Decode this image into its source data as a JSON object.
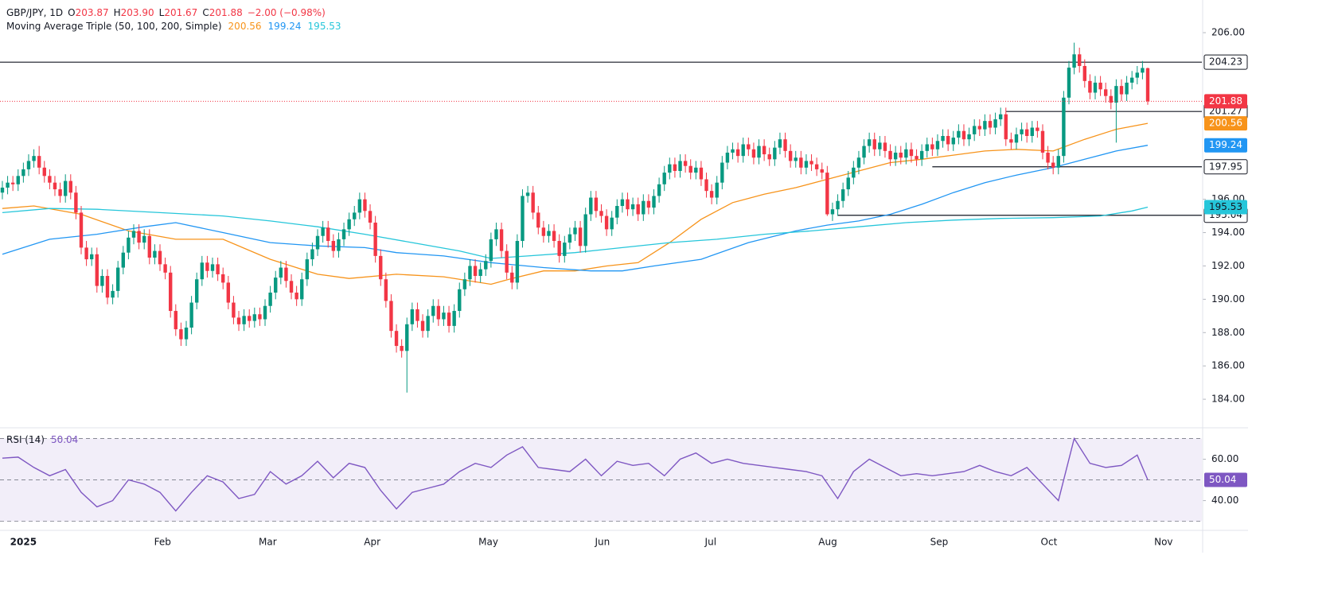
{
  "header": {
    "symbol": "GBP/JPY, 1D",
    "ohlc": [
      {
        "letter": "O",
        "label": "203.87"
      },
      {
        "letter": "H",
        "label": "203.90"
      },
      {
        "letter": "L",
        "label": "201.67"
      },
      {
        "letter": "C",
        "label": "201.88"
      }
    ],
    "change": "−2.00 (−0.98%)",
    "value_color": "#f23645",
    "ma_title": "Moving Average Triple (50, 100, 200, Simple)"
  },
  "chart_data": {
    "type": "candlestick",
    "up_color": "#089981",
    "down_color": "#f23645",
    "open": [
      196.4,
      196.7,
      197.0,
      196.9,
      197.4,
      197.8,
      198.3,
      198.6,
      197.9,
      197.4,
      197.0,
      196.6,
      196.2,
      197.1,
      196.4,
      195.2,
      193.1,
      192.4,
      192.7,
      190.8,
      191.4,
      190.1,
      190.5,
      191.9,
      192.8,
      193.7,
      194.1,
      193.4,
      193.8,
      192.5,
      192.9,
      192.1,
      191.6,
      189.3,
      188.2,
      187.6,
      188.3,
      189.8,
      191.2,
      192.2,
      191.7,
      192.1,
      191.5,
      191.0,
      189.8,
      188.9,
      188.5,
      189.0,
      188.7,
      189.1,
      188.8,
      189.6,
      190.4,
      191.3,
      191.9,
      191.1,
      190.4,
      190.0,
      191.2,
      192.4,
      193.0,
      193.8,
      194.3,
      193.5,
      192.9,
      193.6,
      194.2,
      194.8,
      195.2,
      196.0,
      195.3,
      194.6,
      192.6,
      191.2,
      189.9,
      188.1,
      187.2,
      186.9,
      188.5,
      189.4,
      188.7,
      188.1,
      189.0,
      189.6,
      188.8,
      189.2,
      188.4,
      189.3,
      190.6,
      191.2,
      192.0,
      191.4,
      191.8,
      192.3,
      193.6,
      194.2,
      192.9,
      191.6,
      191.0,
      193.5,
      196.2,
      196.4,
      195.2,
      194.3,
      193.8,
      194.1,
      193.5,
      192.6,
      193.4,
      193.9,
      194.3,
      193.2,
      195.1,
      196.1,
      195.3,
      195.0,
      194.2,
      194.9,
      195.6,
      196.0,
      195.4,
      195.7,
      195.1,
      195.9,
      195.5,
      196.2,
      196.9,
      197.6,
      198.1,
      197.7,
      198.3,
      198.0,
      197.6,
      197.9,
      197.2,
      196.5,
      196.1,
      197.0,
      198.2,
      198.8,
      199.0,
      198.6,
      199.3,
      199.0,
      198.5,
      199.2,
      198.7,
      198.4,
      199.1,
      199.6,
      198.9,
      198.3,
      198.5,
      197.9,
      198.3,
      198.1,
      197.8,
      197.6,
      195.1,
      195.4,
      195.9,
      196.6,
      197.3,
      197.9,
      198.5,
      199.2,
      199.6,
      199.0,
      199.4,
      198.9,
      198.4,
      198.8,
      198.5,
      199.0,
      198.6,
      198.4,
      198.9,
      199.3,
      199.0,
      199.5,
      199.8,
      199.3,
      199.7,
      200.1,
      199.6,
      199.9,
      200.4,
      200.2,
      200.7,
      200.3,
      200.8,
      201.1,
      199.6,
      199.4,
      199.9,
      200.2,
      199.8,
      200.3,
      200.1,
      198.8,
      198.2,
      197.9,
      198.6,
      202.1,
      203.9,
      204.7,
      204.0,
      203.1,
      202.4,
      203.0,
      202.6,
      202.2,
      201.8,
      202.8,
      202.3,
      203.0,
      203.3,
      203.6,
      203.87
    ],
    "high": [
      197.1,
      197.4,
      197.4,
      197.8,
      198.2,
      198.7,
      199.0,
      199.2,
      198.3,
      197.8,
      197.4,
      197.0,
      197.5,
      197.5,
      196.8,
      195.6,
      193.5,
      193.1,
      193.1,
      191.8,
      191.8,
      190.9,
      192.3,
      193.2,
      194.1,
      194.5,
      194.5,
      194.2,
      194.2,
      193.3,
      193.3,
      192.5,
      192.0,
      189.7,
      188.6,
      188.7,
      190.2,
      191.6,
      192.6,
      192.6,
      192.5,
      192.5,
      191.9,
      191.4,
      190.2,
      189.3,
      189.4,
      189.4,
      189.5,
      189.5,
      190.0,
      190.8,
      191.7,
      192.3,
      192.3,
      191.5,
      190.8,
      191.6,
      192.8,
      193.4,
      194.2,
      194.7,
      194.7,
      193.9,
      194.0,
      194.6,
      195.2,
      195.6,
      196.4,
      196.4,
      195.7,
      195.0,
      193.0,
      191.6,
      190.3,
      188.5,
      187.6,
      188.9,
      189.8,
      189.8,
      189.1,
      189.4,
      190.0,
      190.0,
      189.6,
      189.6,
      189.7,
      191.0,
      191.6,
      192.4,
      192.4,
      192.2,
      192.7,
      194.0,
      194.6,
      194.6,
      193.3,
      192.0,
      193.9,
      196.6,
      196.8,
      196.8,
      195.6,
      194.7,
      194.5,
      194.5,
      193.9,
      193.8,
      194.3,
      194.7,
      194.7,
      195.5,
      196.5,
      196.5,
      195.7,
      195.4,
      195.3,
      196.0,
      196.4,
      196.4,
      196.1,
      196.1,
      196.3,
      196.3,
      196.6,
      197.3,
      198.0,
      198.5,
      198.5,
      198.7,
      198.7,
      198.4,
      198.3,
      198.3,
      197.6,
      196.9,
      197.4,
      198.6,
      199.2,
      199.4,
      199.4,
      199.7,
      199.7,
      199.4,
      199.6,
      199.6,
      199.1,
      199.5,
      200.0,
      200.0,
      199.3,
      198.9,
      198.9,
      198.7,
      198.7,
      198.5,
      198.2,
      198.0,
      195.8,
      196.3,
      197.0,
      197.7,
      198.3,
      198.9,
      199.6,
      200.0,
      200.0,
      199.8,
      199.8,
      199.3,
      199.2,
      199.2,
      199.4,
      199.4,
      199.0,
      199.3,
      199.7,
      199.7,
      199.9,
      200.2,
      200.2,
      200.1,
      200.5,
      200.5,
      200.3,
      200.8,
      200.8,
      201.1,
      201.1,
      201.2,
      201.5,
      201.5,
      200.0,
      200.3,
      200.6,
      200.6,
      200.7,
      200.7,
      200.5,
      199.2,
      198.6,
      199.0,
      202.5,
      204.3,
      205.4,
      205.1,
      204.4,
      203.5,
      203.4,
      203.4,
      203.0,
      202.6,
      203.2,
      203.2,
      203.4,
      203.7,
      204.0,
      204.3,
      203.9
    ],
    "low": [
      196.0,
      196.3,
      196.5,
      196.5,
      197.0,
      197.4,
      197.9,
      197.5,
      197.0,
      196.6,
      196.2,
      195.8,
      195.8,
      196.0,
      194.8,
      192.7,
      192.0,
      192.0,
      190.4,
      190.4,
      189.7,
      189.7,
      190.1,
      191.5,
      192.4,
      193.3,
      193.0,
      193.0,
      192.1,
      192.1,
      191.7,
      191.2,
      188.9,
      187.8,
      187.2,
      187.2,
      187.9,
      189.4,
      190.8,
      191.3,
      191.3,
      191.1,
      190.6,
      189.4,
      188.5,
      188.1,
      188.1,
      188.3,
      188.3,
      188.4,
      188.4,
      189.2,
      190.0,
      190.9,
      190.7,
      190.0,
      189.6,
      189.6,
      190.8,
      192.0,
      192.6,
      193.4,
      193.1,
      192.5,
      192.5,
      193.2,
      193.8,
      194.4,
      194.8,
      194.9,
      194.2,
      192.2,
      190.8,
      189.5,
      187.7,
      186.8,
      186.5,
      184.4,
      188.1,
      188.3,
      187.7,
      187.7,
      188.6,
      188.4,
      188.4,
      188.0,
      188.0,
      188.9,
      190.2,
      190.8,
      191.0,
      191.0,
      191.4,
      191.9,
      193.2,
      192.5,
      191.2,
      190.6,
      190.6,
      193.1,
      195.8,
      194.8,
      193.9,
      193.4,
      193.4,
      193.1,
      192.2,
      192.2,
      193.0,
      193.5,
      192.8,
      192.8,
      194.7,
      194.9,
      194.6,
      193.8,
      193.8,
      194.5,
      195.2,
      195.0,
      195.0,
      194.7,
      194.7,
      195.1,
      195.1,
      195.8,
      196.5,
      197.2,
      197.3,
      197.3,
      197.6,
      197.2,
      197.2,
      196.8,
      196.1,
      195.7,
      195.7,
      196.6,
      197.8,
      198.4,
      198.2,
      198.2,
      198.6,
      198.1,
      198.1,
      198.3,
      198.0,
      198.0,
      198.7,
      198.5,
      197.9,
      197.9,
      197.5,
      197.5,
      197.7,
      197.4,
      197.2,
      195.0,
      194.7,
      195.0,
      195.5,
      196.2,
      196.9,
      197.5,
      198.1,
      198.8,
      198.6,
      198.6,
      198.5,
      198.0,
      198.0,
      198.1,
      198.1,
      198.2,
      198.0,
      198.0,
      198.5,
      198.6,
      198.6,
      199.1,
      198.9,
      198.9,
      199.3,
      199.2,
      199.2,
      199.5,
      199.8,
      199.8,
      199.9,
      199.9,
      200.4,
      199.2,
      199.0,
      199.0,
      199.5,
      199.4,
      199.4,
      199.7,
      198.4,
      197.8,
      197.5,
      197.5,
      198.2,
      201.7,
      203.5,
      203.6,
      202.7,
      202.0,
      202.0,
      202.2,
      201.8,
      201.4,
      199.4,
      201.9,
      201.9,
      202.6,
      202.9,
      203.2,
      201.67
    ],
    "close": [
      196.7,
      197.0,
      196.9,
      197.4,
      197.8,
      198.3,
      198.6,
      197.9,
      197.4,
      197.0,
      196.6,
      196.2,
      197.1,
      196.4,
      195.2,
      193.1,
      192.4,
      192.7,
      190.8,
      191.4,
      190.1,
      190.5,
      191.9,
      192.8,
      193.7,
      194.1,
      193.4,
      193.8,
      192.5,
      192.9,
      192.1,
      191.6,
      189.3,
      188.2,
      187.6,
      188.3,
      189.8,
      191.2,
      192.2,
      191.7,
      192.1,
      191.5,
      191.0,
      189.8,
      188.9,
      188.5,
      189.0,
      188.7,
      189.1,
      188.8,
      189.6,
      190.4,
      191.3,
      191.9,
      191.1,
      190.4,
      190.0,
      191.2,
      192.4,
      193.0,
      193.8,
      194.3,
      193.5,
      192.9,
      193.6,
      194.2,
      194.8,
      195.2,
      196.0,
      195.3,
      194.6,
      192.6,
      191.2,
      189.9,
      188.1,
      187.2,
      186.9,
      188.5,
      189.4,
      188.7,
      188.1,
      189.0,
      189.6,
      188.8,
      189.2,
      188.4,
      189.3,
      190.6,
      191.2,
      192.0,
      191.4,
      191.8,
      192.3,
      193.6,
      194.2,
      192.9,
      191.6,
      191.0,
      193.5,
      196.2,
      196.4,
      195.2,
      194.3,
      193.8,
      194.1,
      193.5,
      192.6,
      193.4,
      193.9,
      194.3,
      193.2,
      195.1,
      196.1,
      195.3,
      195.0,
      194.2,
      194.9,
      195.6,
      196.0,
      195.4,
      195.7,
      195.1,
      195.9,
      195.5,
      196.2,
      196.9,
      197.6,
      198.1,
      197.7,
      198.3,
      198.0,
      197.6,
      197.9,
      197.2,
      196.5,
      196.1,
      197.0,
      198.2,
      198.8,
      199.0,
      198.6,
      199.3,
      199.0,
      198.5,
      199.2,
      198.7,
      198.4,
      199.1,
      199.6,
      198.9,
      198.3,
      198.5,
      197.9,
      198.3,
      198.1,
      197.8,
      197.6,
      195.1,
      195.4,
      195.9,
      196.6,
      197.3,
      197.9,
      198.5,
      199.2,
      199.6,
      199.0,
      199.4,
      198.9,
      198.4,
      198.8,
      198.5,
      199.0,
      198.6,
      198.4,
      198.9,
      199.3,
      199.0,
      199.5,
      199.8,
      199.3,
      199.7,
      200.1,
      199.6,
      199.9,
      200.4,
      200.2,
      200.7,
      200.3,
      200.8,
      201.1,
      199.6,
      199.4,
      199.9,
      200.2,
      199.8,
      200.3,
      200.1,
      198.8,
      198.2,
      197.9,
      198.6,
      202.1,
      203.9,
      204.7,
      204.0,
      203.1,
      202.4,
      203.0,
      202.6,
      202.2,
      201.8,
      202.8,
      202.3,
      203.0,
      203.3,
      203.6,
      203.88,
      201.88
    ],
    "xlim": [
      -0.45,
      228.3
    ],
    "xticks": [
      {
        "value": 4,
        "label": "2025",
        "bold": true
      },
      {
        "value": 30.5,
        "label": "Feb"
      },
      {
        "value": 50.5,
        "label": "Mar"
      },
      {
        "value": 70.4,
        "label": "Apr"
      },
      {
        "value": 92.5,
        "label": "May"
      },
      {
        "value": 114.2,
        "label": "Jun"
      },
      {
        "value": 134.8,
        "label": "Jul"
      },
      {
        "value": 157.1,
        "label": "Aug"
      },
      {
        "value": 178.3,
        "label": "Sep"
      },
      {
        "value": 199.2,
        "label": "Oct"
      },
      {
        "value": 221,
        "label": "Nov"
      }
    ],
    "ylim": [
      182.43,
      207.96
    ],
    "yticks": [
      {
        "value": 206,
        "label": "206.00"
      },
      {
        "value": 196,
        "label": "196.00"
      },
      {
        "value": 194,
        "label": "194.00"
      },
      {
        "value": 192,
        "label": "192.00"
      },
      {
        "value": 190,
        "label": "190.00"
      },
      {
        "value": 188,
        "label": "188.00"
      },
      {
        "value": 186,
        "label": "186.00"
      },
      {
        "value": 184,
        "label": "184.00"
      }
    ],
    "last_price_color": "#f23645",
    "levels": [
      {
        "value": 204.23,
        "start": -0.45
      },
      {
        "value": 201.27,
        "start": 191
      },
      {
        "value": 197.95,
        "start": 177
      },
      {
        "value": 195.04,
        "start": 159
      }
    ],
    "moving_averages": [
      {
        "color": "#f7931a",
        "x": [
          0,
          6,
          15,
          24,
          33,
          42,
          51,
          60,
          66,
          75,
          84,
          93,
          97,
          103,
          109,
          115,
          121,
          127,
          133,
          139,
          145,
          151,
          157,
          163,
          169,
          175,
          181,
          187,
          193,
          200,
          206,
          212,
          218
        ],
        "values": [
          195.45,
          195.6,
          195.1,
          194.1,
          193.6,
          193.6,
          192.4,
          191.5,
          191.25,
          191.5,
          191.35,
          190.9,
          191.25,
          191.7,
          191.7,
          192.0,
          192.2,
          193.4,
          194.8,
          195.8,
          196.3,
          196.7,
          197.2,
          197.7,
          198.2,
          198.4,
          198.65,
          198.9,
          199.0,
          198.9,
          199.6,
          200.2,
          200.56
        ]
      },
      {
        "color": "#2196f3",
        "x": [
          0,
          9,
          18,
          27,
          33,
          42,
          51,
          60,
          69,
          75,
          84,
          93,
          103,
          112,
          118,
          124,
          133,
          142,
          151,
          157,
          163,
          169,
          175,
          181,
          187,
          193,
          200,
          206,
          212,
          218
        ],
        "values": [
          192.7,
          193.6,
          193.9,
          194.35,
          194.6,
          194.0,
          193.4,
          193.2,
          193.1,
          192.8,
          192.6,
          192.2,
          191.9,
          191.7,
          191.7,
          192.0,
          192.4,
          193.4,
          194.1,
          194.45,
          194.7,
          195.1,
          195.7,
          196.4,
          197.0,
          197.45,
          197.9,
          198.4,
          198.9,
          199.24
        ]
      },
      {
        "color": "#26c6da",
        "x": [
          0,
          9,
          18,
          30,
          42,
          51,
          60,
          69,
          78,
          87,
          93,
          100,
          109,
          118,
          127,
          136,
          145,
          154,
          163,
          172,
          181,
          190,
          200,
          209,
          215,
          218
        ],
        "values": [
          195.2,
          195.45,
          195.4,
          195.2,
          195.0,
          194.7,
          194.35,
          193.9,
          193.4,
          192.9,
          192.45,
          192.6,
          192.8,
          193.1,
          193.4,
          193.6,
          193.9,
          194.1,
          194.35,
          194.6,
          194.75,
          194.85,
          194.9,
          195.0,
          195.3,
          195.53
        ]
      }
    ],
    "rsi": {
      "title": "RSI (14)",
      "color": "#7e57c2",
      "band_color": "rgba(126,87,194,0.1)",
      "ylim": [
        26.4,
        74.4
      ],
      "yticks": [
        {
          "value": 60,
          "label": "60.00"
        },
        {
          "value": 40,
          "label": "40.00"
        }
      ],
      "bands": [
        70,
        50,
        30
      ],
      "x": [
        0,
        3,
        6,
        9,
        12,
        15,
        18,
        21,
        24,
        27,
        30,
        33,
        36,
        39,
        42,
        45,
        48,
        51,
        54,
        57,
        60,
        63,
        66,
        69,
        72,
        75,
        78,
        81,
        84,
        87,
        90,
        93,
        96,
        99,
        102,
        105,
        108,
        111,
        114,
        117,
        120,
        123,
        126,
        129,
        132,
        135,
        138,
        141,
        144,
        147,
        150,
        153,
        156,
        159,
        162,
        165,
        168,
        171,
        174,
        177,
        180,
        183,
        186,
        189,
        192,
        195,
        198,
        201,
        204,
        207,
        210,
        213,
        216,
        218
      ],
      "values": [
        60.5,
        61,
        56,
        52,
        55,
        44,
        37,
        40,
        50,
        48,
        44,
        35,
        44,
        52,
        49,
        41,
        43,
        54,
        48,
        52,
        59,
        51,
        58,
        56,
        45,
        36,
        44,
        46,
        48,
        54,
        58,
        56,
        62,
        66,
        56,
        55,
        54,
        60,
        52,
        59,
        57,
        58,
        52,
        60,
        63,
        58,
        60,
        58,
        57,
        56,
        55,
        54,
        52,
        41,
        54,
        60,
        56,
        52,
        53,
        52,
        53,
        54,
        57,
        54,
        52,
        56,
        48,
        40,
        70,
        58,
        56,
        57,
        62,
        50.04
      ]
    }
  }
}
